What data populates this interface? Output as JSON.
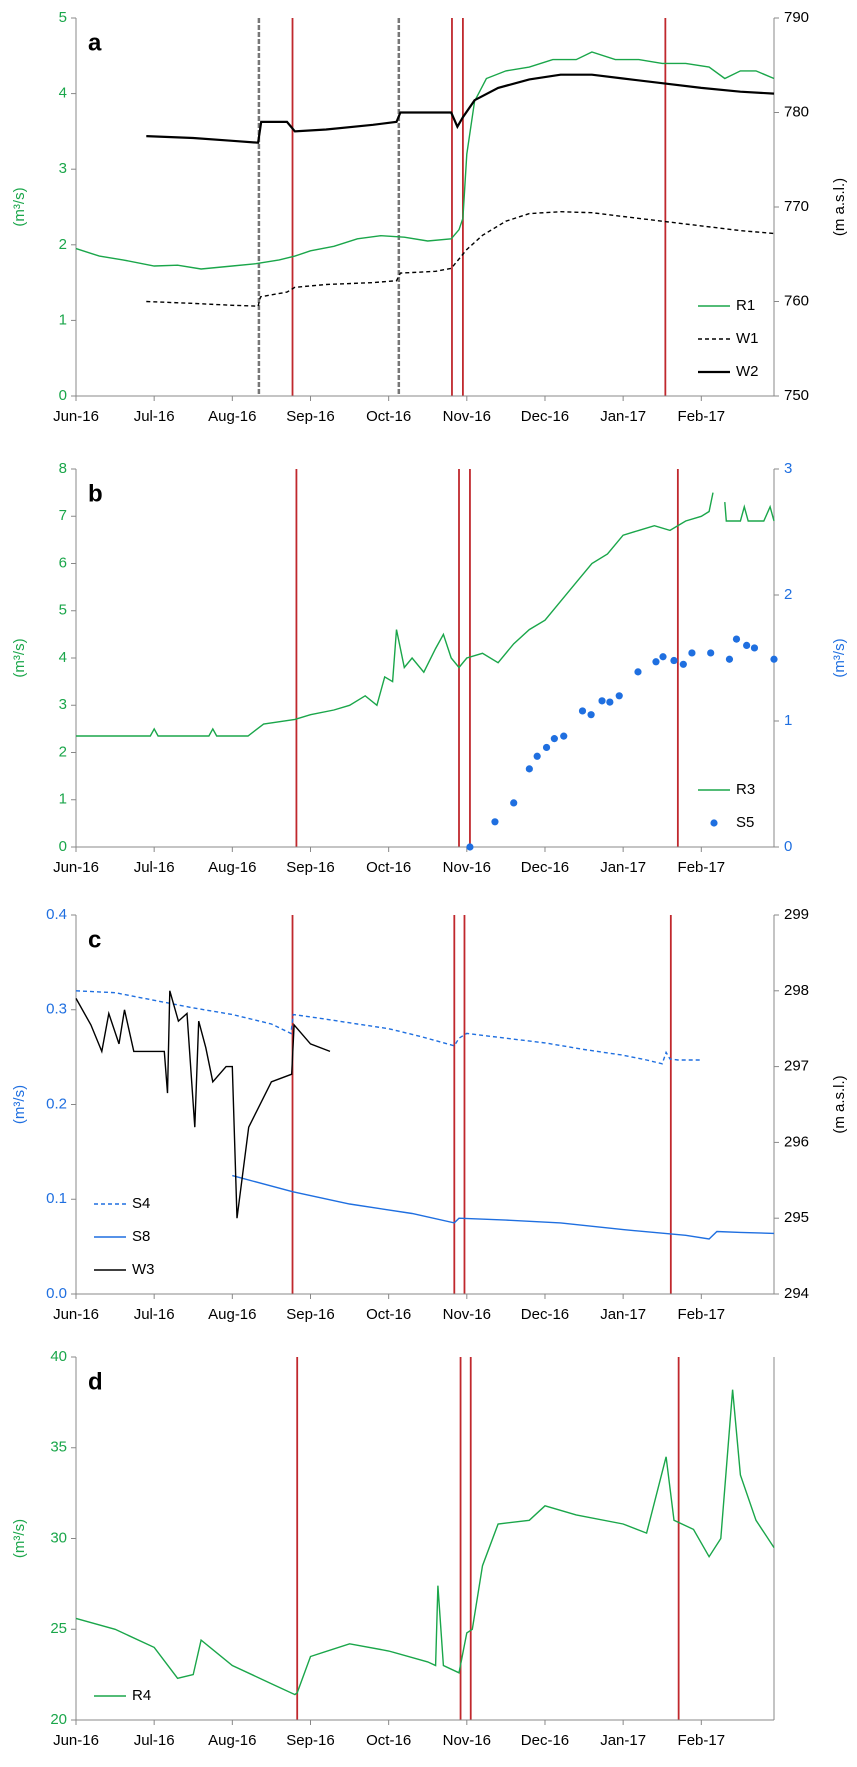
{
  "chart_data": [
    {
      "type": "line",
      "label": "a",
      "ylabel": "(m³/s)",
      "y2label": "(m a.s.l.)",
      "y_color": "#1aa64a",
      "y2_color": "#000000",
      "legend": "lower right",
      "xlim": [
        0,
        8.93
      ],
      "xticks": [
        {
          "value": 0,
          "label": "Jun-16"
        },
        {
          "value": 1,
          "label": "Jul-16"
        },
        {
          "value": 2,
          "label": "Aug-16"
        },
        {
          "value": 3,
          "label": "Sep-16"
        },
        {
          "value": 4,
          "label": "Oct-16"
        },
        {
          "value": 5,
          "label": "Nov-16"
        },
        {
          "value": 6,
          "label": "Dec-16"
        },
        {
          "value": 7,
          "label": "Jan-17"
        },
        {
          "value": 8,
          "label": "Feb-17"
        }
      ],
      "ylim": [
        0,
        5
      ],
      "yticks": [
        0,
        1,
        2,
        3,
        4,
        5
      ],
      "y2lim": [
        750,
        790
      ],
      "y2ticks": [
        750,
        760,
        770,
        780,
        790
      ],
      "vlines": [
        {
          "x": 2.34,
          "color": "#777777",
          "style": "dashed"
        },
        {
          "x": 4.13,
          "color": "#777777",
          "style": "dashed"
        },
        {
          "x": 2.77,
          "color": "#c0282d",
          "style": "solid"
        },
        {
          "x": 4.81,
          "color": "#c0282d",
          "style": "solid"
        },
        {
          "x": 4.95,
          "color": "#c0282d",
          "style": "solid"
        },
        {
          "x": 7.54,
          "color": "#c0282d",
          "style": "solid"
        }
      ],
      "series": [
        {
          "name": "R1",
          "color": "#1aa64a",
          "style": "solid",
          "x": [
            0,
            0.3,
            0.6,
            1.0,
            1.3,
            1.6,
            2.0,
            2.3,
            2.6,
            2.8,
            3.0,
            3.3,
            3.6,
            3.9,
            4.2,
            4.5,
            4.8,
            4.9,
            4.95,
            5.0,
            5.1,
            5.25,
            5.5,
            5.8,
            6.1,
            6.4,
            6.6,
            6.9,
            7.2,
            7.5,
            7.8,
            8.1,
            8.3,
            8.5,
            8.7,
            8.93
          ],
          "values": [
            1.95,
            1.85,
            1.8,
            1.72,
            1.73,
            1.68,
            1.72,
            1.75,
            1.8,
            1.85,
            1.92,
            1.98,
            2.08,
            2.12,
            2.1,
            2.05,
            2.08,
            2.2,
            2.35,
            3.2,
            3.9,
            4.2,
            4.3,
            4.35,
            4.45,
            4.45,
            4.55,
            4.45,
            4.45,
            4.4,
            4.4,
            4.35,
            4.2,
            4.3,
            4.3,
            4.2
          ]
        },
        {
          "name": "W1",
          "color": "#000000",
          "style": "dashed",
          "axis": "y2",
          "x": [
            0.9,
            1.5,
            2.0,
            2.33,
            2.36,
            2.7,
            2.8,
            3.2,
            3.8,
            4.1,
            4.15,
            4.6,
            4.8,
            4.9,
            5.0,
            5.2,
            5.5,
            5.8,
            6.2,
            6.6,
            7.0,
            7.5,
            8.0,
            8.5,
            8.93
          ],
          "values": [
            760,
            759.8,
            759.6,
            759.5,
            760.5,
            761,
            761.5,
            761.8,
            762,
            762.2,
            763,
            763.2,
            763.5,
            764.5,
            765.5,
            767,
            768.5,
            769.3,
            769.5,
            769.4,
            769,
            768.5,
            768,
            767.5,
            767.2
          ]
        },
        {
          "name": "W2",
          "color": "#000000",
          "style": "thick",
          "axis": "y2",
          "x": [
            0.9,
            1.5,
            2.0,
            2.33,
            2.37,
            2.7,
            2.8,
            3.2,
            3.8,
            4.1,
            4.15,
            4.6,
            4.8,
            4.88,
            4.95,
            5.1,
            5.4,
            5.8,
            6.2,
            6.6,
            7.0,
            7.5,
            8.0,
            8.5,
            8.93
          ],
          "values": [
            777.5,
            777.3,
            777,
            776.8,
            779,
            779,
            778,
            778.2,
            778.7,
            779,
            780,
            780,
            780,
            778.5,
            779.5,
            781.3,
            782.6,
            783.5,
            784,
            784,
            783.6,
            783.1,
            782.6,
            782.2,
            782
          ]
        }
      ]
    },
    {
      "type": "line",
      "label": "b",
      "ylabel": "(m³/s)",
      "y2label": "(m³/s)",
      "y_color": "#1aa64a",
      "y2_color": "#1f6fe0",
      "legend": "lower right",
      "xlim": [
        0,
        8.93
      ],
      "xticks": [
        {
          "value": 0,
          "label": "Jun-16"
        },
        {
          "value": 1,
          "label": "Jul-16"
        },
        {
          "value": 2,
          "label": "Aug-16"
        },
        {
          "value": 3,
          "label": "Sep-16"
        },
        {
          "value": 4,
          "label": "Oct-16"
        },
        {
          "value": 5,
          "label": "Nov-16"
        },
        {
          "value": 6,
          "label": "Dec-16"
        },
        {
          "value": 7,
          "label": "Jan-17"
        },
        {
          "value": 8,
          "label": "Feb-17"
        }
      ],
      "ylim": [
        0,
        8
      ],
      "yticks": [
        0,
        1,
        2,
        3,
        4,
        5,
        6,
        7,
        8
      ],
      "y2lim": [
        0,
        3
      ],
      "y2ticks": [
        0,
        1,
        2,
        3
      ],
      "vlines": [
        {
          "x": 2.82,
          "color": "#c0282d",
          "style": "solid"
        },
        {
          "x": 4.9,
          "color": "#c0282d",
          "style": "solid"
        },
        {
          "x": 5.04,
          "color": "#c0282d",
          "style": "solid"
        },
        {
          "x": 7.7,
          "color": "#c0282d",
          "style": "solid"
        }
      ],
      "series": [
        {
          "name": "R3",
          "color": "#1aa64a",
          "style": "solid",
          "x": [
            0,
            0.5,
            0.95,
            1.0,
            1.05,
            1.5,
            1.7,
            1.75,
            1.8,
            2.0,
            2.2,
            2.4,
            2.8,
            3.0,
            3.3,
            3.5,
            3.7,
            3.85,
            3.95,
            4.05,
            4.1,
            4.2,
            4.3,
            4.45,
            4.6,
            4.7,
            4.8,
            4.9,
            5.0,
            5.2,
            5.4,
            5.6,
            5.8,
            6.0,
            6.2,
            6.4,
            6.6,
            6.8,
            7.0,
            7.2,
            7.4,
            7.6,
            7.8,
            8.0,
            8.1,
            8.15,
            8.2,
            8.3,
            8.32,
            8.5,
            8.55,
            8.6,
            8.8,
            8.88,
            8.93
          ],
          "values": [
            2.35,
            2.35,
            2.35,
            2.5,
            2.35,
            2.35,
            2.35,
            2.5,
            2.35,
            2.35,
            2.35,
            2.6,
            2.7,
            2.8,
            2.9,
            3.0,
            3.2,
            3.0,
            3.6,
            3.5,
            4.6,
            3.8,
            4.0,
            3.7,
            4.2,
            4.5,
            4.0,
            3.8,
            4.0,
            4.1,
            3.9,
            4.3,
            4.6,
            4.8,
            5.2,
            5.6,
            6.0,
            6.2,
            6.6,
            6.7,
            6.8,
            6.7,
            6.9,
            7.0,
            7.1,
            7.5,
            null,
            7.3,
            6.9,
            6.9,
            7.2,
            6.9,
            6.9,
            7.2,
            6.9
          ]
        },
        {
          "name": "S5",
          "color": "#1f6fe0",
          "style": "dots",
          "axis": "y2",
          "x": [
            5.04,
            5.36,
            5.6,
            5.8,
            5.9,
            6.02,
            6.12,
            6.24,
            6.48,
            6.59,
            6.73,
            6.83,
            6.95,
            7.19,
            7.42,
            7.51,
            7.65,
            7.77,
            7.88,
            8.12,
            8.36,
            8.45,
            8.58,
            8.68,
            8.93
          ],
          "values": [
            0,
            0.2,
            0.35,
            0.62,
            0.72,
            0.79,
            0.86,
            0.88,
            1.08,
            1.05,
            1.16,
            1.15,
            1.2,
            1.39,
            1.47,
            1.51,
            1.48,
            1.45,
            1.54,
            1.54,
            1.49,
            1.65,
            1.6,
            1.58,
            1.49
          ]
        }
      ]
    },
    {
      "type": "line",
      "label": "c",
      "ylabel": "(m³/s)",
      "y2label": "(m a.s.l.)",
      "y_color": "#1f6fe0",
      "y2_color": "#000000",
      "legend": "lower left",
      "xlim": [
        0,
        8.93
      ],
      "xticks": [
        {
          "value": 0,
          "label": "Jun-16"
        },
        {
          "value": 1,
          "label": "Jul-16"
        },
        {
          "value": 2,
          "label": "Aug-16"
        },
        {
          "value": 3,
          "label": "Sep-16"
        },
        {
          "value": 4,
          "label": "Oct-16"
        },
        {
          "value": 5,
          "label": "Nov-16"
        },
        {
          "value": 6,
          "label": "Dec-16"
        },
        {
          "value": 7,
          "label": "Jan-17"
        },
        {
          "value": 8,
          "label": "Feb-17"
        }
      ],
      "ylim": [
        0,
        0.4
      ],
      "yticks": [
        {
          "value": 0,
          "label": "0.0"
        },
        0.1,
        0.2,
        0.3,
        0.4
      ],
      "y2lim": [
        294,
        299
      ],
      "y2ticks": [
        294,
        295,
        296,
        297,
        298,
        299
      ],
      "vlines": [
        {
          "x": 2.77,
          "color": "#c0282d",
          "style": "solid"
        },
        {
          "x": 4.84,
          "color": "#c0282d",
          "style": "solid"
        },
        {
          "x": 4.97,
          "color": "#c0282d",
          "style": "solid"
        },
        {
          "x": 7.61,
          "color": "#c0282d",
          "style": "solid"
        }
      ],
      "series": [
        {
          "name": "S4",
          "color": "#1f6fe0",
          "style": "dashed",
          "x": [
            0,
            0.5,
            1.0,
            1.5,
            2.0,
            2.5,
            2.75,
            2.78,
            3.2,
            3.6,
            4.0,
            4.4,
            4.84,
            4.9,
            5.0,
            5.3,
            5.7,
            6.0,
            6.5,
            7.0,
            7.3,
            7.5,
            7.55,
            7.6,
            7.7,
            8.0
          ],
          "values": [
            0.32,
            0.318,
            0.31,
            0.302,
            0.295,
            0.285,
            0.275,
            0.295,
            0.29,
            0.285,
            0.28,
            0.272,
            0.262,
            0.27,
            0.275,
            0.272,
            0.268,
            0.265,
            0.258,
            0.252,
            0.247,
            0.243,
            0.255,
            0.248,
            0.247,
            0.247
          ]
        },
        {
          "name": "S8",
          "color": "#1f6fe0",
          "style": "solid",
          "x": [
            2.0,
            2.77,
            3.5,
            4.3,
            4.84,
            4.9,
            5.5,
            6.2,
            7.0,
            7.8,
            8.1,
            8.2,
            8.5,
            8.93
          ],
          "values": [
            0.125,
            0.108,
            0.095,
            0.085,
            0.075,
            0.08,
            0.078,
            0.075,
            0.068,
            0.062,
            0.058,
            0.066,
            0.065,
            0.064
          ]
        },
        {
          "name": "W3",
          "color": "#000000",
          "style": "solid",
          "axis": "y2",
          "x": [
            0,
            0.19,
            0.33,
            0.42,
            0.55,
            0.62,
            0.74,
            0.9,
            1.13,
            1.17,
            1.2,
            1.31,
            1.42,
            1.52,
            1.57,
            1.66,
            1.75,
            1.92,
            2.0,
            2.06,
            2.21,
            2.5,
            2.76,
            2.79,
            3.0,
            3.25
          ],
          "values": [
            297.9,
            297.55,
            297.2,
            297.7,
            297.3,
            297.75,
            297.2,
            297.2,
            297.2,
            296.65,
            298.0,
            297.6,
            297.7,
            296.2,
            297.6,
            297.25,
            296.8,
            297.0,
            297.0,
            295.0,
            296.2,
            296.8,
            296.9,
            297.55,
            297.3,
            297.2
          ]
        }
      ]
    },
    {
      "type": "line",
      "label": "d",
      "ylabel": "(m³/s)",
      "y_color": "#1aa64a",
      "legend": "lower left",
      "xlim": [
        0,
        8.93
      ],
      "xticks": [
        {
          "value": 0,
          "label": "Jun-16"
        },
        {
          "value": 1,
          "label": "Jul-16"
        },
        {
          "value": 2,
          "label": "Aug-16"
        },
        {
          "value": 3,
          "label": "Sep-16"
        },
        {
          "value": 4,
          "label": "Oct-16"
        },
        {
          "value": 5,
          "label": "Nov-16"
        },
        {
          "value": 6,
          "label": "Dec-16"
        },
        {
          "value": 7,
          "label": "Jan-17"
        },
        {
          "value": 8,
          "label": "Feb-17"
        }
      ],
      "ylim": [
        20,
        40
      ],
      "yticks": [
        20,
        25,
        30,
        35,
        40
      ],
      "vlines": [
        {
          "x": 2.83,
          "color": "#c0282d",
          "style": "solid"
        },
        {
          "x": 4.92,
          "color": "#c0282d",
          "style": "solid"
        },
        {
          "x": 5.05,
          "color": "#c0282d",
          "style": "solid"
        },
        {
          "x": 7.71,
          "color": "#c0282d",
          "style": "solid"
        }
      ],
      "series": [
        {
          "name": "R4",
          "color": "#1aa64a",
          "style": "solid",
          "x": [
            0,
            0.5,
            1.0,
            1.3,
            1.5,
            1.6,
            2.0,
            2.5,
            2.8,
            2.83,
            3.0,
            3.5,
            4.0,
            4.5,
            4.6,
            4.63,
            4.7,
            4.9,
            5.0,
            5.07,
            5.2,
            5.4,
            5.8,
            6.0,
            6.4,
            7.0,
            7.3,
            7.55,
            7.65,
            7.9,
            8.1,
            8.25,
            8.4,
            8.5,
            8.7,
            8.93
          ],
          "values": [
            25.6,
            25.0,
            24.0,
            22.3,
            22.5,
            24.4,
            23.0,
            22.0,
            21.4,
            21.5,
            23.5,
            24.2,
            23.8,
            23.2,
            23.0,
            27.4,
            23.0,
            22.6,
            24.8,
            25.0,
            28.5,
            30.8,
            31.0,
            31.8,
            31.3,
            30.8,
            30.3,
            34.5,
            31.0,
            30.5,
            29.0,
            30.0,
            38.2,
            33.5,
            31.0,
            29.5
          ]
        }
      ]
    }
  ]
}
